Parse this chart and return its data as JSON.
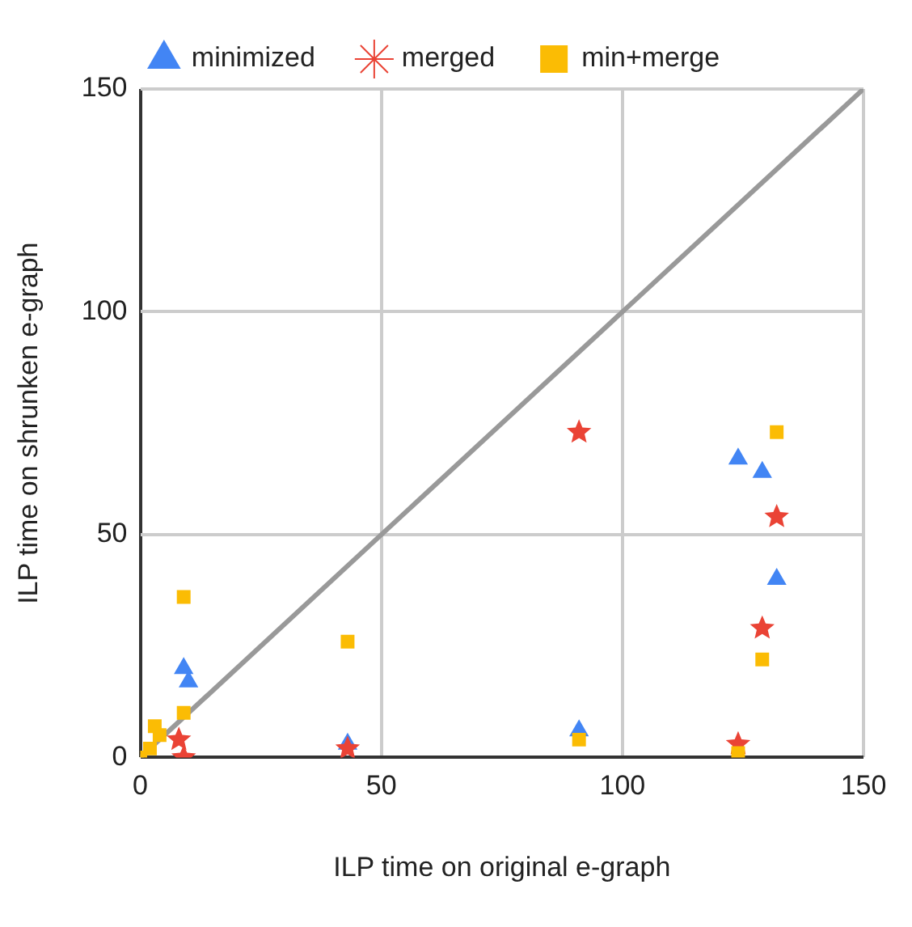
{
  "chart_data": {
    "type": "scatter",
    "xlabel": "ILP time on original e-graph",
    "ylabel": "ILP time on shrunken e-graph",
    "xlim": [
      0,
      150
    ],
    "xticks": [
      0,
      50,
      100,
      150
    ],
    "ylim": [
      0,
      150
    ],
    "yticks": [
      0,
      50,
      100,
      150
    ],
    "grid": true,
    "legend": "top",
    "series": [
      {
        "name": "minimized",
        "color": "#4285f4",
        "marker": "triangle",
        "x": [
          9,
          10,
          124,
          129,
          132,
          91,
          43
        ],
        "values": [
          20,
          17,
          67,
          64,
          40,
          6,
          3
        ]
      },
      {
        "name": "merged",
        "color": "#ea4335",
        "marker": "star",
        "x": [
          91,
          132,
          129,
          124,
          43,
          8,
          9
        ],
        "values": [
          73,
          54,
          29,
          3,
          2,
          4,
          0
        ]
      },
      {
        "name": "min+merge",
        "color": "#fbbc04",
        "marker": "square",
        "x": [
          9,
          43,
          132,
          129,
          91,
          124,
          9,
          3,
          4,
          2,
          0
        ],
        "values": [
          36,
          26,
          73,
          22,
          4,
          1,
          10,
          7,
          5,
          2,
          0
        ]
      },
      {
        "type": "line",
        "color": "#999999",
        "x": [
          0,
          150
        ],
        "values": [
          0,
          150
        ]
      }
    ]
  }
}
